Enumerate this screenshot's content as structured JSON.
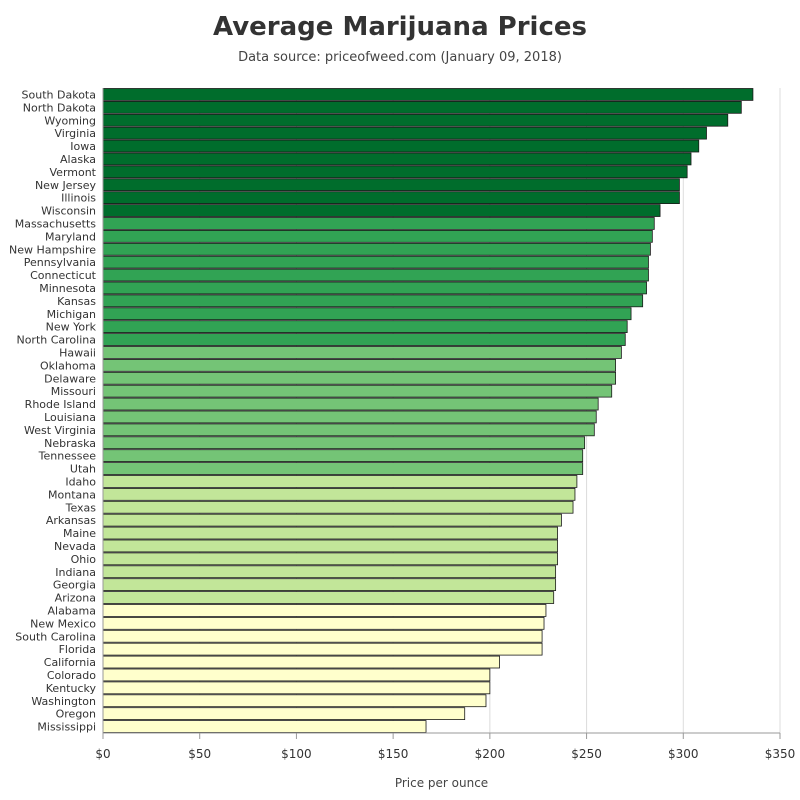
{
  "chart_data": {
    "type": "bar",
    "orientation": "horizontal",
    "title": "Average Marijuana Prices",
    "subtitle": "Data source: priceofweed.com (January 09, 2018)",
    "xlabel": "Price per ounce",
    "ylabel": "",
    "xlim": [
      0,
      350
    ],
    "x_ticks": [
      0,
      50,
      100,
      150,
      200,
      250,
      300,
      350
    ],
    "x_tick_labels": [
      "$0",
      "$50",
      "$100",
      "$150",
      "$200",
      "$250",
      "$300",
      "$350"
    ],
    "grid": "vertical",
    "colors": {
      "tier1": "#006d2c",
      "tier2": "#31a354",
      "tier3": "#74c476",
      "tier4": "#c2e699",
      "tier5": "#ffffcc"
    },
    "categories": [
      "South Dakota",
      "North Dakota",
      "Wyoming",
      "Virginia",
      "Iowa",
      "Alaska",
      "Vermont",
      "New Jersey",
      "Illinois",
      "Wisconsin",
      "Massachusetts",
      "Maryland",
      "New Hampshire",
      "Pennsylvania",
      "Connecticut",
      "Minnesota",
      "Kansas",
      "Michigan",
      "New York",
      "North Carolina",
      "Hawaii",
      "Oklahoma",
      "Delaware",
      "Missouri",
      "Rhode Island",
      "Louisiana",
      "West Virginia",
      "Nebraska",
      "Tennessee",
      "Utah",
      "Idaho",
      "Montana",
      "Texas",
      "Arkansas",
      "Maine",
      "Nevada",
      "Ohio",
      "Indiana",
      "Georgia",
      "Arizona",
      "Alabama",
      "New Mexico",
      "South Carolina",
      "Florida",
      "California",
      "Colorado",
      "Kentucky",
      "Washington",
      "Oregon",
      "Mississippi"
    ],
    "values": [
      336,
      330,
      323,
      312,
      308,
      304,
      302,
      298,
      298,
      288,
      285,
      284,
      283,
      282,
      282,
      281,
      279,
      273,
      271,
      270,
      268,
      265,
      265,
      263,
      256,
      255,
      254,
      249,
      248,
      248,
      245,
      244,
      243,
      237,
      235,
      235,
      235,
      234,
      234,
      233,
      229,
      228,
      227,
      227,
      205,
      200,
      200,
      198,
      187,
      167
    ],
    "tiers": [
      1,
      1,
      1,
      1,
      1,
      1,
      1,
      1,
      1,
      1,
      2,
      2,
      2,
      2,
      2,
      2,
      2,
      2,
      2,
      2,
      3,
      3,
      3,
      3,
      3,
      3,
      3,
      3,
      3,
      3,
      4,
      4,
      4,
      4,
      4,
      4,
      4,
      4,
      4,
      4,
      5,
      5,
      5,
      5,
      5,
      5,
      5,
      5,
      5,
      5
    ]
  }
}
